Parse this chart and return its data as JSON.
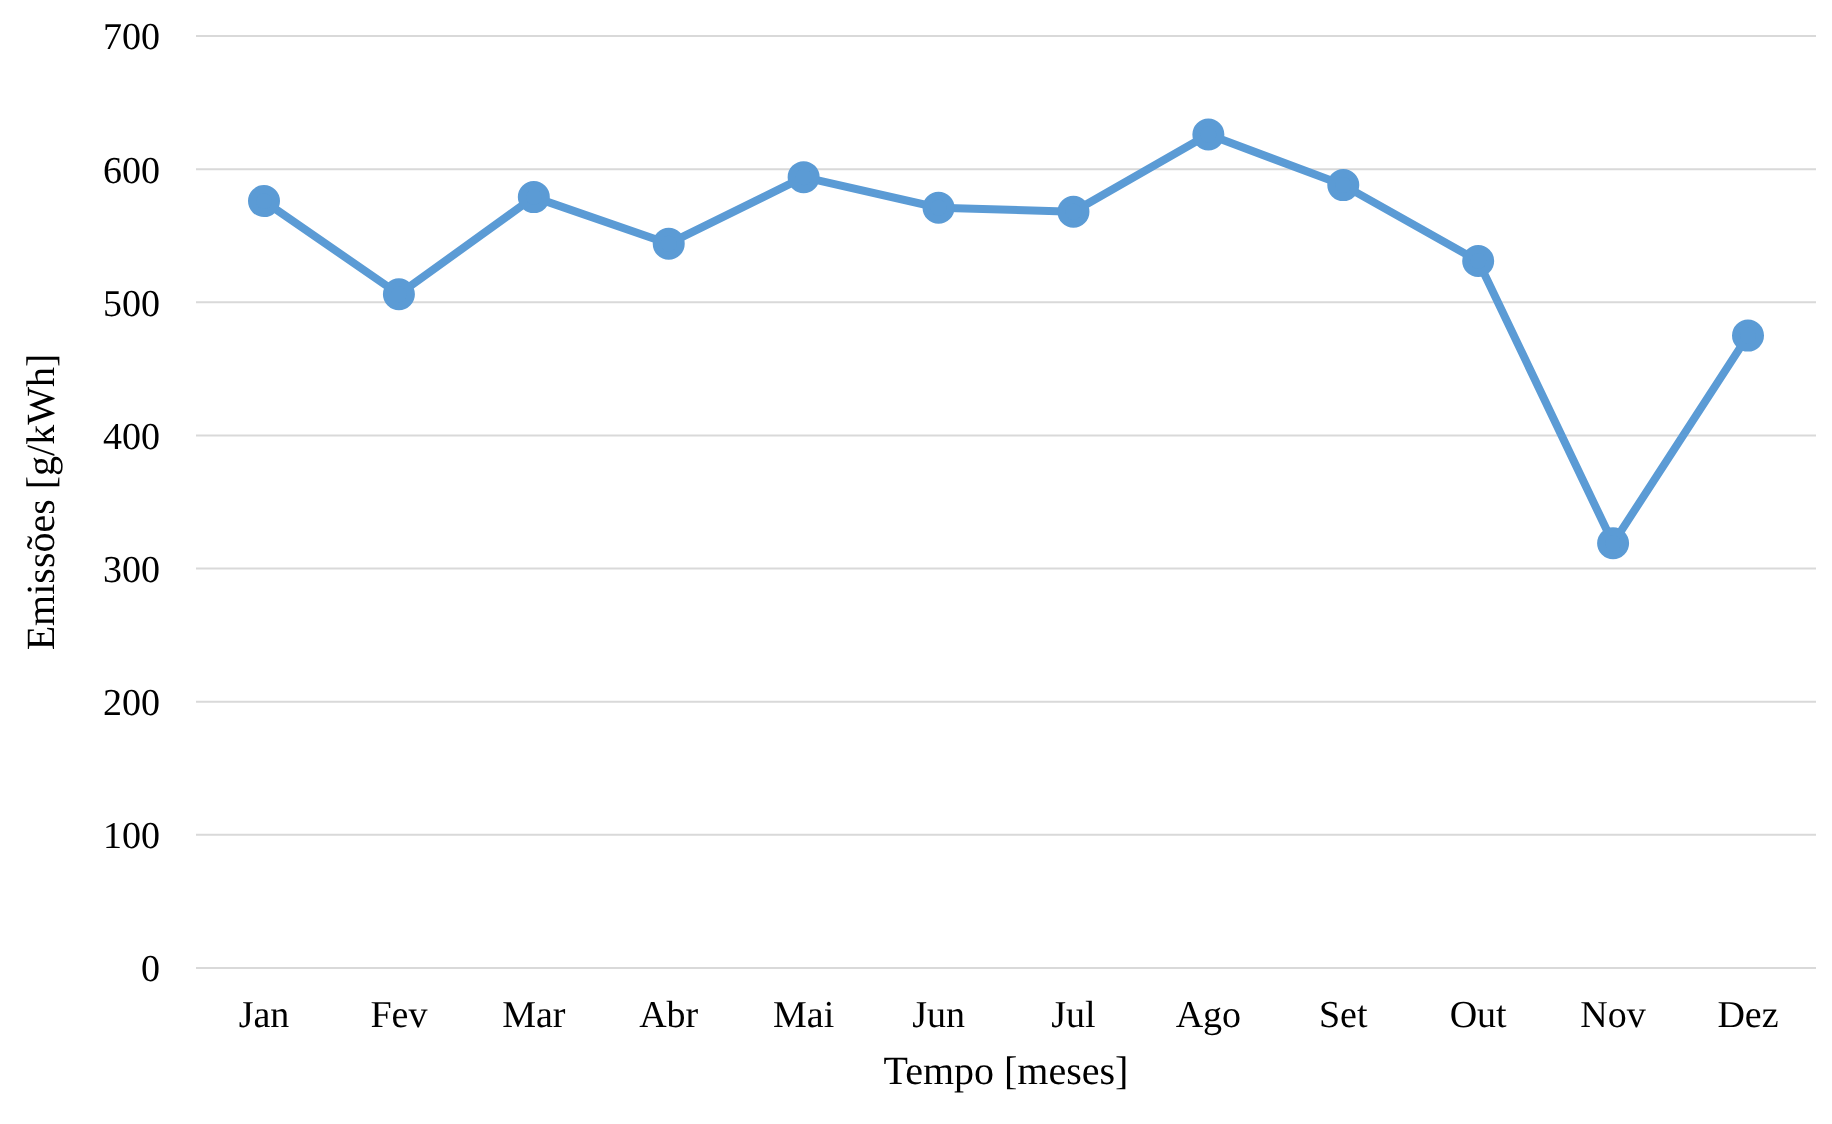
{
  "chart_data": {
    "type": "line",
    "xlabel": "Tempo [meses]",
    "ylabel": "Emissões [g/kWh]",
    "categories": [
      "Jan",
      "Fev",
      "Mar",
      "Abr",
      "Mai",
      "Jun",
      "Jul",
      "Ago",
      "Set",
      "Out",
      "Nov",
      "Dez"
    ],
    "series": [
      {
        "color": "#5b9bd5",
        "values": [
          576,
          506,
          579,
          544,
          594,
          571,
          568,
          626,
          588,
          531,
          319,
          475
        ]
      }
    ],
    "ylim": [
      0,
      700
    ],
    "yticks": [
      0,
      100,
      200,
      300,
      400,
      500,
      600,
      700
    ],
    "grid": "y",
    "marker": "circle",
    "line_style": "solid",
    "legend": false
  }
}
